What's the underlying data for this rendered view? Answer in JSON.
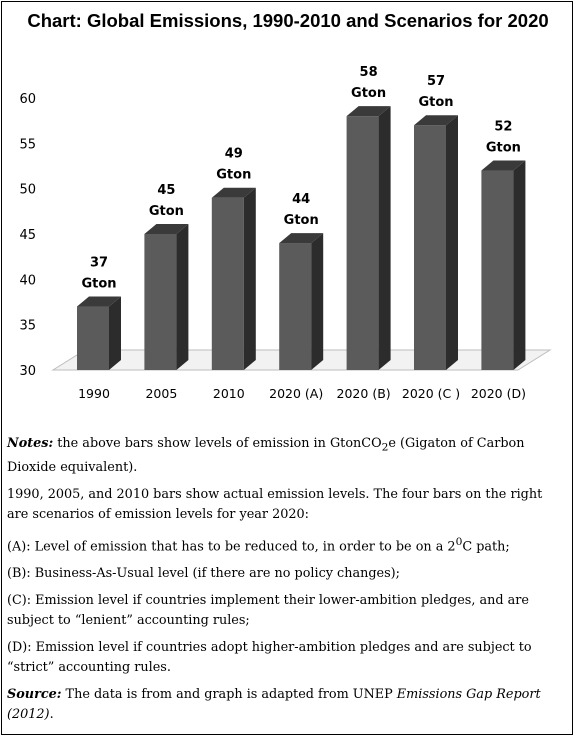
{
  "title": "Chart: Global Emissions, 1990-2010 and Scenarios for 2020",
  "chart_data": {
    "type": "bar",
    "categories": [
      "1990",
      "2005",
      "2010",
      "2020 (A)",
      "2020 (B)",
      "2020 (C )",
      "2020 (D)"
    ],
    "values": [
      37,
      45,
      49,
      44,
      58,
      57,
      52
    ],
    "data_labels": [
      [
        "37",
        "Gton"
      ],
      [
        "45",
        "Gton"
      ],
      [
        "49",
        "Gton"
      ],
      [
        "44",
        "Gton"
      ],
      [
        "58",
        "Gton"
      ],
      [
        "57",
        "Gton"
      ],
      [
        "52",
        "Gton"
      ]
    ],
    "ylim": [
      30,
      60
    ],
    "yticks": [
      "30",
      "35",
      "40",
      "45",
      "50",
      "55",
      "60"
    ],
    "grid": false,
    "bar_color": "#5a5a5a",
    "style": "3d"
  },
  "notes": {
    "notes_label": "Notes:",
    "notes_pre": " the above bars show levels of emission in GtonCO",
    "notes_sub": "2",
    "notes_post": "e (Gigaton of Carbon Dioxide equivalent).",
    "p2": "1990, 2005, and 2010 bars show actual emission levels. The four bars on the right are scenarios of emission levels for year 2020:",
    "a_pre": "(A): Level of emission that has to be reduced to, in order to be on a 2",
    "a_sup": "0",
    "a_post": "C path;",
    "b": "(B): Business-As-Usual level (if there are no policy changes);",
    "c": "(C): Emission level if countries implement their lower-ambition pledges, and are subject to “lenient” accounting rules;",
    "d": "(D): Emission level if countries adopt higher-ambition pledges and are subject to “strict” accounting rules.",
    "source_label": "Source:",
    "source_pre": " The data is from and graph is adapted from UNEP ",
    "source_title": "Emissions Gap Report (2012)",
    "source_post": "."
  }
}
